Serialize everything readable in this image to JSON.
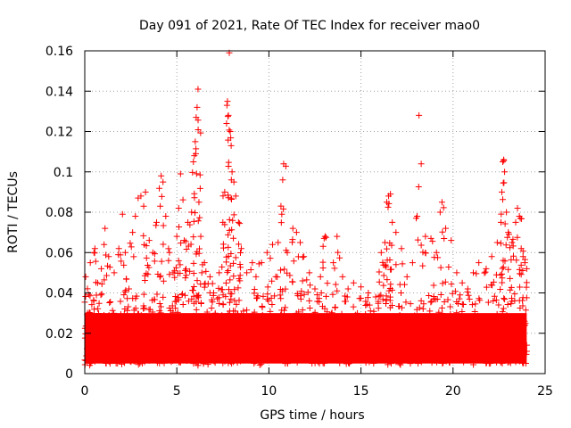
{
  "chart_data": {
    "type": "scatter",
    "title": "Day 091 of 2021, Rate Of TEC Index for receiver mao0",
    "xlabel": "GPS time / hours",
    "ylabel": "ROTI / TECUs",
    "xlim": [
      0,
      25
    ],
    "ylim": [
      0,
      0.16
    ],
    "xticks": [
      0,
      5,
      10,
      15,
      20,
      25
    ],
    "xtick_labels": [
      "0",
      "5",
      "10",
      "15",
      "20",
      "25"
    ],
    "yticks": [
      0,
      0.02,
      0.04,
      0.06,
      0.08,
      0.1,
      0.12,
      0.14,
      0.16
    ],
    "ytick_labels": [
      "0",
      "0.02",
      "0.04",
      "0.06",
      "0.08",
      "0.1",
      "0.12",
      "0.14",
      "0.16"
    ],
    "grid": true,
    "marker": "+",
    "marker_color": "#ff0000",
    "background_band": {
      "x_range": [
        0,
        24
      ],
      "y_range": [
        0.005,
        0.03
      ],
      "note": "dense continuous scatter of samples"
    },
    "series": [
      {
        "name": "ROTI",
        "points": [
          [
            0.05,
            0.048
          ],
          [
            0.15,
            0.03
          ],
          [
            0.3,
            0.055
          ],
          [
            0.5,
            0.06
          ],
          [
            0.55,
            0.062
          ],
          [
            0.7,
            0.045
          ],
          [
            0.9,
            0.052
          ],
          [
            1.05,
            0.064
          ],
          [
            1.1,
            0.072
          ],
          [
            1.3,
            0.058
          ],
          [
            1.6,
            0.05
          ],
          [
            1.85,
            0.062
          ],
          [
            2.05,
            0.079
          ],
          [
            2.2,
            0.06
          ],
          [
            2.4,
            0.042
          ],
          [
            2.6,
            0.07
          ],
          [
            2.75,
            0.078
          ],
          [
            2.9,
            0.087
          ],
          [
            3.05,
            0.088
          ],
          [
            3.2,
            0.083
          ],
          [
            3.3,
            0.09
          ],
          [
            3.5,
            0.066
          ],
          [
            3.7,
            0.06
          ],
          [
            3.9,
            0.075
          ],
          [
            4.1,
            0.083
          ],
          [
            4.15,
            0.098
          ],
          [
            4.25,
            0.095
          ],
          [
            4.4,
            0.078
          ],
          [
            4.6,
            0.06
          ],
          [
            4.8,
            0.05
          ],
          [
            5.0,
            0.068
          ],
          [
            5.1,
            0.082
          ],
          [
            5.2,
            0.099
          ],
          [
            5.4,
            0.066
          ],
          [
            5.6,
            0.075
          ],
          [
            5.8,
            0.08
          ],
          [
            5.9,
            0.105
          ],
          [
            5.95,
            0.108
          ],
          [
            6.0,
            0.115
          ],
          [
            6.05,
            0.127
          ],
          [
            6.1,
            0.132
          ],
          [
            6.15,
            0.141
          ],
          [
            6.2,
            0.085
          ],
          [
            6.3,
            0.068
          ],
          [
            6.5,
            0.055
          ],
          [
            6.8,
            0.048
          ],
          [
            7.0,
            0.04
          ],
          [
            7.3,
            0.05
          ],
          [
            7.5,
            0.075
          ],
          [
            7.6,
            0.09
          ],
          [
            7.7,
            0.124
          ],
          [
            7.72,
            0.133
          ],
          [
            7.75,
            0.135
          ],
          [
            7.8,
            0.128
          ],
          [
            7.85,
            0.159
          ],
          [
            7.9,
            0.12
          ],
          [
            7.95,
            0.113
          ],
          [
            8.0,
            0.1
          ],
          [
            8.1,
            0.095
          ],
          [
            8.2,
            0.088
          ],
          [
            8.35,
            0.075
          ],
          [
            8.5,
            0.062
          ],
          [
            8.8,
            0.05
          ],
          [
            9.1,
            0.055
          ],
          [
            9.3,
            0.048
          ],
          [
            9.6,
            0.055
          ],
          [
            9.9,
            0.06
          ],
          [
            10.2,
            0.064
          ],
          [
            10.5,
            0.065
          ],
          [
            10.7,
            0.079
          ],
          [
            10.75,
            0.096
          ],
          [
            10.8,
            0.104
          ],
          [
            11.0,
            0.06
          ],
          [
            11.3,
            0.072
          ],
          [
            11.5,
            0.07
          ],
          [
            11.7,
            0.065
          ],
          [
            11.9,
            0.058
          ],
          [
            12.2,
            0.05
          ],
          [
            12.5,
            0.042
          ],
          [
            12.8,
            0.048
          ],
          [
            13.0,
            0.067
          ],
          [
            13.05,
            0.068
          ],
          [
            13.1,
            0.0675
          ],
          [
            13.5,
            0.055
          ],
          [
            13.7,
            0.068
          ],
          [
            14.0,
            0.048
          ],
          [
            14.3,
            0.042
          ],
          [
            14.6,
            0.045
          ],
          [
            15.0,
            0.043
          ],
          [
            15.4,
            0.04
          ],
          [
            15.8,
            0.038
          ],
          [
            16.1,
            0.06
          ],
          [
            16.3,
            0.065
          ],
          [
            16.4,
            0.085
          ],
          [
            16.5,
            0.088
          ],
          [
            16.6,
            0.089
          ],
          [
            16.7,
            0.075
          ],
          [
            16.9,
            0.07
          ],
          [
            17.2,
            0.062
          ],
          [
            17.5,
            0.048
          ],
          [
            17.8,
            0.055
          ],
          [
            18.0,
            0.077
          ],
          [
            18.05,
            0.078
          ],
          [
            18.15,
            0.128
          ],
          [
            18.5,
            0.068
          ],
          [
            18.8,
            0.067
          ],
          [
            19.1,
            0.06
          ],
          [
            19.3,
            0.08
          ],
          [
            19.4,
            0.085
          ],
          [
            19.6,
            0.072
          ],
          [
            19.9,
            0.066
          ],
          [
            20.2,
            0.05
          ],
          [
            20.5,
            0.045
          ],
          [
            20.8,
            0.042
          ],
          [
            21.1,
            0.05
          ],
          [
            21.4,
            0.055
          ],
          [
            21.8,
            0.052
          ],
          [
            22.1,
            0.058
          ],
          [
            22.4,
            0.065
          ],
          [
            22.6,
            0.075
          ],
          [
            22.65,
            0.09
          ],
          [
            22.7,
            0.105
          ],
          [
            22.75,
            0.106
          ],
          [
            22.8,
            0.1
          ],
          [
            22.9,
            0.08
          ],
          [
            23.0,
            0.07
          ],
          [
            23.2,
            0.065
          ],
          [
            23.4,
            0.075
          ],
          [
            23.5,
            0.082
          ],
          [
            23.6,
            0.078
          ],
          [
            23.7,
            0.062
          ],
          [
            23.8,
            0.058
          ],
          [
            23.9,
            0.055
          ],
          [
            24.0,
            0.052
          ]
        ]
      }
    ]
  }
}
